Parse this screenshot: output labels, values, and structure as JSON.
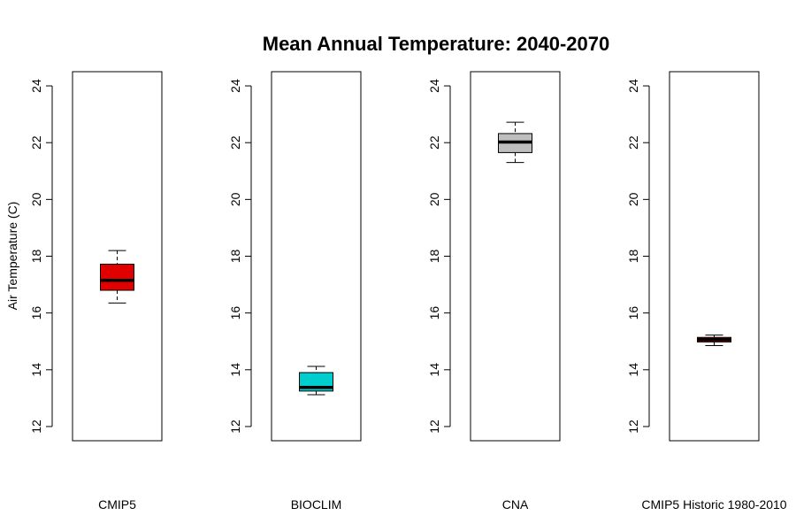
{
  "chart_data": {
    "type": "box",
    "title": "Mean Annual Temperature: 2040-2070",
    "ylabel": "Air Temperature (C)",
    "ylim": [
      11.5,
      24.5
    ],
    "yticks": [
      12,
      14,
      16,
      18,
      20,
      22,
      24
    ],
    "grid": false,
    "panels": [
      {
        "label": "CMIP5",
        "color": "#e00000",
        "whisker_low": 16.35,
        "q1": 16.8,
        "median": 17.15,
        "q3": 17.72,
        "whisker_high": 18.2
      },
      {
        "label": "BIOCLIM",
        "color": "#00cdcd",
        "whisker_low": 13.12,
        "q1": 13.25,
        "median": 13.38,
        "q3": 13.9,
        "whisker_high": 14.12
      },
      {
        "label": "CNA",
        "color": "#bebebe",
        "whisker_low": 21.3,
        "q1": 21.65,
        "median": 22.02,
        "q3": 22.32,
        "whisker_high": 22.72
      },
      {
        "label": "CMIP5 Historic 1980-2010",
        "color": "#e00000",
        "whisker_low": 14.85,
        "q1": 14.98,
        "median": 15.06,
        "q3": 15.14,
        "whisker_high": 15.22
      }
    ]
  }
}
